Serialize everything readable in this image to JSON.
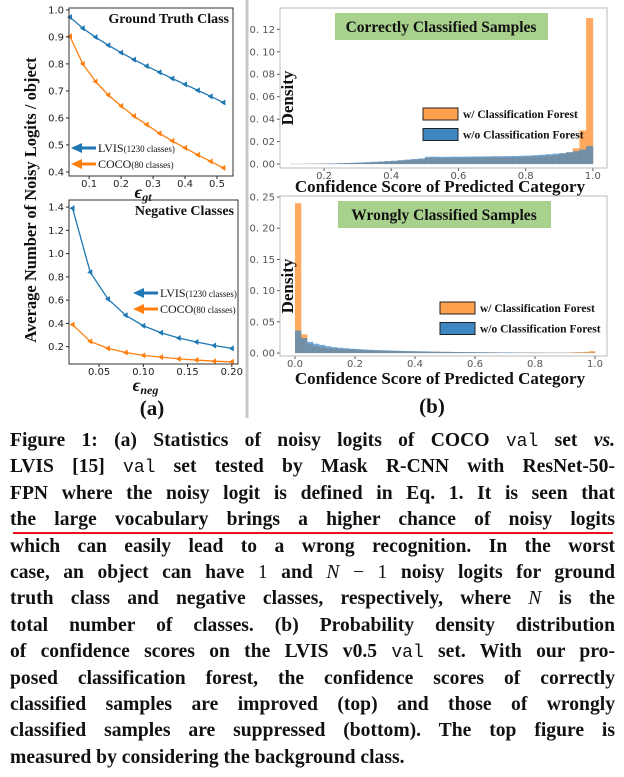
{
  "figure": {
    "panel_a_label": "(a)",
    "panel_b_label": "(b)",
    "panel_a_ylabel": "Average Number of Noisy Logits / object",
    "colors": {
      "lvis": "#1f77b4",
      "coco": "#ff7f0e",
      "hist_with": "#ffa04d",
      "hist_without": "#3f87c2",
      "title_box": "#a9d18e",
      "underline": "#e8141a"
    }
  },
  "chart_data": [
    {
      "type": "line",
      "title": "Ground Truth Class",
      "xlabel_symbol": "ϵ",
      "xlabel_sub": "gt",
      "xlim": [
        0.037,
        0.55
      ],
      "ylim": [
        0.385,
        1.007
      ],
      "xticks": [
        {
          "v": 0.1,
          "t": "0.1"
        },
        {
          "v": 0.2,
          "t": "0.2"
        },
        {
          "v": 0.3,
          "t": "0.3"
        },
        {
          "v": 0.4,
          "t": "0.4"
        },
        {
          "v": 0.5,
          "t": "0.5"
        }
      ],
      "yticks": [
        {
          "v": 0.4,
          "t": "0.4"
        },
        {
          "v": 0.5,
          "t": "0.5"
        },
        {
          "v": 0.6,
          "t": "0.6"
        },
        {
          "v": 0.7,
          "t": "0.7"
        },
        {
          "v": 0.8,
          "t": "0.8"
        },
        {
          "v": 0.9,
          "t": "0.9"
        },
        {
          "v": 1.0,
          "t": "1.0"
        }
      ],
      "x": [
        0.04,
        0.08,
        0.12,
        0.16,
        0.2,
        0.24,
        0.28,
        0.32,
        0.36,
        0.4,
        0.44,
        0.48,
        0.52
      ],
      "series": [
        {
          "name": "LVIS",
          "name_detail": "(1230 classes)",
          "color": "#1f77b4",
          "values": [
            0.973,
            0.932,
            0.899,
            0.869,
            0.842,
            0.816,
            0.792,
            0.769,
            0.746,
            0.724,
            0.702,
            0.68,
            0.657
          ]
        },
        {
          "name": "COCO",
          "name_detail": "(80 classes)",
          "color": "#ff7f0e",
          "values": [
            0.902,
            0.8,
            0.735,
            0.685,
            0.644,
            0.607,
            0.575,
            0.543,
            0.515,
            0.489,
            0.463,
            0.439,
            0.415
          ]
        }
      ],
      "legend": "bottom-left",
      "grid": false
    },
    {
      "type": "line",
      "title": "Negative Classes",
      "xlabel_symbol": "ϵ",
      "xlabel_sub": "neg",
      "xlim": [
        0.016,
        0.207
      ],
      "ylim": [
        0.051,
        1.461
      ],
      "xticks": [
        {
          "v": 0.05,
          "t": "0.05"
        },
        {
          "v": 0.1,
          "t": "0.10"
        },
        {
          "v": 0.15,
          "t": "0.15"
        },
        {
          "v": 0.2,
          "t": "0.20"
        }
      ],
      "yticks": [
        {
          "v": 0.2,
          "t": "0.2"
        },
        {
          "v": 0.4,
          "t": "0.4"
        },
        {
          "v": 0.6,
          "t": "0.6"
        },
        {
          "v": 0.8,
          "t": "0.8"
        },
        {
          "v": 1.0,
          "t": "1.0"
        },
        {
          "v": 1.2,
          "t": "1.2"
        },
        {
          "v": 1.4,
          "t": "1.4"
        }
      ],
      "x": [
        0.02,
        0.04,
        0.06,
        0.08,
        0.1,
        0.12,
        0.14,
        0.16,
        0.18,
        0.2
      ],
      "series": [
        {
          "name": "LVIS",
          "name_detail": "(1230 classes)",
          "color": "#1f77b4",
          "values": [
            1.39,
            0.84,
            0.61,
            0.47,
            0.38,
            0.32,
            0.275,
            0.24,
            0.21,
            0.185
          ]
        },
        {
          "name": "COCO",
          "name_detail": "(80 classes)",
          "color": "#ff7f0e",
          "values": [
            0.39,
            0.245,
            0.185,
            0.15,
            0.125,
            0.11,
            0.095,
            0.085,
            0.075,
            0.07
          ]
        }
      ],
      "legend": "center-right",
      "grid": false
    },
    {
      "type": "histogram",
      "title": "Correctly Classified Samples",
      "xlabel": "Confidence Score of Predicted Category",
      "ylabel": "Density",
      "xlim": [
        0.069,
        1.042
      ],
      "ylim": [
        -0.0035,
        0.139
      ],
      "xticks": [
        {
          "v": 0.2,
          "t": "0.2"
        },
        {
          "v": 0.4,
          "t": "0.4"
        },
        {
          "v": 0.6,
          "t": "0.6"
        },
        {
          "v": 0.8,
          "t": "0.8"
        },
        {
          "v": 1.0,
          "t": "1.0"
        }
      ],
      "yticks": [
        {
          "v": 0,
          "t": "0. 00"
        },
        {
          "v": 0.02,
          "t": "0. 02"
        },
        {
          "v": 0.04,
          "t": "0. 04"
        },
        {
          "v": 0.06,
          "t": "0. 06"
        },
        {
          "v": 0.08,
          "t": "0. 08"
        },
        {
          "v": 0.1,
          "t": "0. 10"
        },
        {
          "v": 0.12,
          "t": "0. 12"
        }
      ],
      "bin_start": 0.1,
      "bin_width": 0.02,
      "series": [
        {
          "name": "w/ Classification Forest",
          "color": "#ffa04d",
          "values": [
            0.0002,
            0.0002,
            0.0002,
            0.0003,
            0.0003,
            0.0004,
            0.0005,
            0.0007,
            0.0008,
            0.001,
            0.0012,
            0.0014,
            0.0017,
            0.002,
            0.0023,
            0.0026,
            0.003,
            0.0034,
            0.0038,
            0.0042,
            0.0055,
            0.0056,
            0.0054,
            0.0055,
            0.0056,
            0.0056,
            0.0057,
            0.0058,
            0.0058,
            0.0059,
            0.006,
            0.006,
            0.006,
            0.0061,
            0.0063,
            0.0065,
            0.0067,
            0.007,
            0.0075,
            0.008,
            0.009,
            0.0105,
            0.014,
            0.03,
            0.13
          ]
        },
        {
          "name": "w/o Classification Forest",
          "color": "#3f87c2",
          "values": [
            0.0002,
            0.0002,
            0.0003,
            0.0003,
            0.0004,
            0.0005,
            0.0006,
            0.0008,
            0.001,
            0.0012,
            0.0014,
            0.0017,
            0.002,
            0.0023,
            0.0027,
            0.003,
            0.0035,
            0.004,
            0.0045,
            0.005,
            0.0065,
            0.0066,
            0.0064,
            0.0065,
            0.0066,
            0.0066,
            0.0067,
            0.0068,
            0.0068,
            0.0069,
            0.007,
            0.007,
            0.0071,
            0.0072,
            0.0074,
            0.0076,
            0.0079,
            0.0083,
            0.0088,
            0.0093,
            0.0098,
            0.0105,
            0.0115,
            0.013,
            0.016
          ]
        }
      ],
      "legend": "center-right",
      "grid": false
    },
    {
      "type": "histogram",
      "title": "Wrongly Classified Samples",
      "xlabel": "Confidence Score of Predicted Category",
      "ylabel": "Density",
      "xlim": [
        -0.05,
        1.04
      ],
      "ylim": [
        -0.0047,
        0.2516
      ],
      "xticks": [
        {
          "v": 0,
          "t": "0.0"
        },
        {
          "v": 0.2,
          "t": "0.2"
        },
        {
          "v": 0.4,
          "t": "0.4"
        },
        {
          "v": 0.6,
          "t": "0.6"
        },
        {
          "v": 0.8,
          "t": "0.8"
        },
        {
          "v": 1.0,
          "t": "1.0"
        }
      ],
      "yticks": [
        {
          "v": 0,
          "t": "0. 00"
        },
        {
          "v": 0.05,
          "t": "0. 05"
        },
        {
          "v": 0.1,
          "t": "0. 10"
        },
        {
          "v": 0.15,
          "t": "0. 15"
        },
        {
          "v": 0.2,
          "t": "0. 20"
        },
        {
          "v": 0.25,
          "t": "0. 25"
        }
      ],
      "bin_start": 0.0,
      "bin_width": 0.02,
      "series": [
        {
          "name": "w/ Classification Forest",
          "color": "#ffa04d",
          "values": [
            0.24,
            0.03,
            0.014,
            0.011,
            0.009,
            0.008,
            0.0072,
            0.0065,
            0.006,
            0.0055,
            0.0051,
            0.0047,
            0.0044,
            0.0041,
            0.0038,
            0.0036,
            0.0034,
            0.0032,
            0.003,
            0.0028,
            0.0026,
            0.0024,
            0.0022,
            0.0021,
            0.0019,
            0.0018,
            0.0016,
            0.0015,
            0.0014,
            0.0013,
            0.0012,
            0.0012,
            0.0011,
            0.001,
            0.0009,
            0.0009,
            0.0008,
            0.0008,
            0.0007,
            0.0007,
            0.0006,
            0.0006,
            0.0006,
            0.0006,
            0.0006,
            0.0007,
            0.0012,
            0.0015,
            0.002,
            0.003
          ]
        },
        {
          "name": "w/o Classification Forest",
          "color": "#3f87c2",
          "values": [
            0.036,
            0.024,
            0.018,
            0.015,
            0.013,
            0.011,
            0.0095,
            0.0085,
            0.0077,
            0.007,
            0.0064,
            0.0058,
            0.0053,
            0.0049,
            0.0045,
            0.0042,
            0.0039,
            0.0036,
            0.0033,
            0.0031,
            0.0029,
            0.0027,
            0.0025,
            0.0023,
            0.0021,
            0.002,
            0.0018,
            0.0017,
            0.0016,
            0.0015,
            0.0014,
            0.0013,
            0.0012,
            0.0011,
            0.001,
            0.001,
            0.0009,
            0.0009,
            0.0008,
            0.0008,
            0.0007,
            0.0007,
            0.0006,
            0.0006,
            0.0006,
            0.0005,
            0.0005,
            0.0005,
            0.0005,
            0.0006
          ]
        }
      ],
      "legend": "center-right",
      "grid": false
    }
  ],
  "caption": {
    "lines": [
      [
        {
          "t": "Figure 1: (a) Statistics of noisy logits of COCO ",
          "s": ""
        },
        {
          "t": "val",
          "s": "m"
        },
        {
          "t": " set ",
          "s": ""
        },
        {
          "t": "vs.",
          "s": "i"
        }
      ],
      [
        {
          "t": "LVIS [15] ",
          "s": ""
        },
        {
          "t": "val",
          "s": "m"
        },
        {
          "t": " set tested by Mask R-CNN with ResNet-50-",
          "s": ""
        }
      ],
      [
        {
          "t": "FPN where the noisy logit is defined in Eq. 1. It is seen that",
          "s": ""
        }
      ],
      [
        {
          "t": "the large vocabulary brings a higher chance of noisy logits",
          "s": ""
        }
      ],
      [
        {
          "t": "which can easily lead to a wrong recognition. In the worst",
          "s": ""
        }
      ],
      [
        {
          "t": "case, an object can have ",
          "s": ""
        },
        {
          "t": "1",
          "s": "n"
        },
        {
          "t": " and ",
          "s": ""
        },
        {
          "t": "N",
          "s": "i n"
        },
        {
          "t": " − 1",
          "s": "n"
        },
        {
          "t": " noisy logits for ground",
          "s": ""
        }
      ],
      [
        {
          "t": "truth class and negative classes, respectively, where ",
          "s": ""
        },
        {
          "t": "N",
          "s": "i n"
        },
        {
          "t": " is the",
          "s": ""
        }
      ],
      [
        {
          "t": "total number of classes. (b) Probability density distribution",
          "s": ""
        }
      ],
      [
        {
          "t": "of confidence scores on the LVIS v0.5 ",
          "s": ""
        },
        {
          "t": "val",
          "s": "m"
        },
        {
          "t": " set. With our pro-",
          "s": ""
        }
      ],
      [
        {
          "t": "posed classification forest, the confidence scores of correctly",
          "s": ""
        }
      ],
      [
        {
          "t": "classified samples are improved (top) and those of wrongly",
          "s": ""
        }
      ],
      [
        {
          "t": "classified samples are suppressed (bottom). The top figure is",
          "s": ""
        }
      ],
      [
        {
          "t": "measured by considering the background class.",
          "s": ""
        }
      ]
    ],
    "underlined_line": 3
  }
}
